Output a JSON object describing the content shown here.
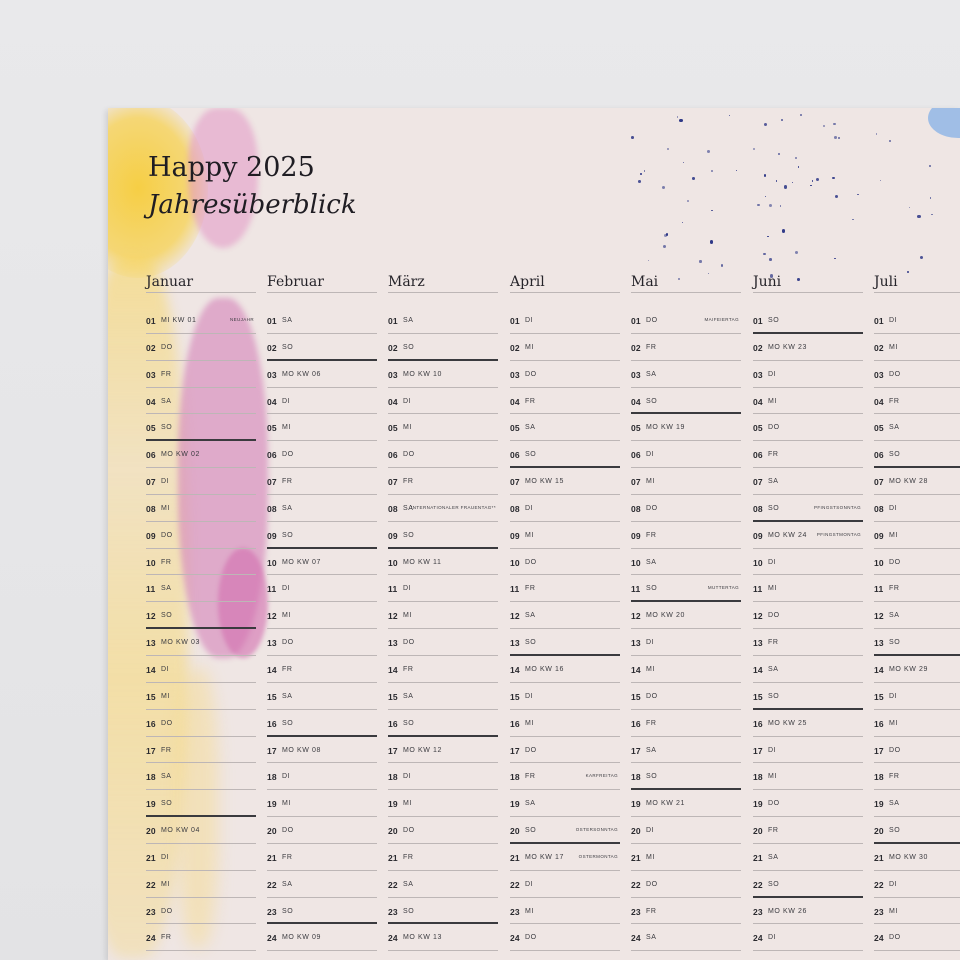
{
  "title": "Happy 2025",
  "subtitle": "Jahresüberblick",
  "colors": {
    "paper": "#efe6e4",
    "ink": "#1f1d23",
    "rule": "#bdb6b6",
    "yellow": "#f6cd3c",
    "pink": "#d278b4",
    "blue": "#8cb4e6",
    "speckle": "#2b3585"
  },
  "months": [
    {
      "name": "Januar",
      "days": [
        {
          "n": "01",
          "d": "MI KW 01",
          "note": "NEUJAHR"
        },
        {
          "n": "02",
          "d": "DO"
        },
        {
          "n": "03",
          "d": "FR"
        },
        {
          "n": "04",
          "d": "SA"
        },
        {
          "n": "05",
          "d": "SO",
          "thick": true
        },
        {
          "n": "06",
          "d": "MO KW 02"
        },
        {
          "n": "07",
          "d": "DI"
        },
        {
          "n": "08",
          "d": "MI"
        },
        {
          "n": "09",
          "d": "DO"
        },
        {
          "n": "10",
          "d": "FR"
        },
        {
          "n": "11",
          "d": "SA"
        },
        {
          "n": "12",
          "d": "SO",
          "thick": true
        },
        {
          "n": "13",
          "d": "MO KW 03"
        },
        {
          "n": "14",
          "d": "DI"
        },
        {
          "n": "15",
          "d": "MI"
        },
        {
          "n": "16",
          "d": "DO"
        },
        {
          "n": "17",
          "d": "FR"
        },
        {
          "n": "18",
          "d": "SA"
        },
        {
          "n": "19",
          "d": "SO",
          "thick": true
        },
        {
          "n": "20",
          "d": "MO KW 04"
        },
        {
          "n": "21",
          "d": "DI"
        },
        {
          "n": "22",
          "d": "MI"
        },
        {
          "n": "23",
          "d": "DO"
        },
        {
          "n": "24",
          "d": "FR"
        }
      ]
    },
    {
      "name": "Februar",
      "days": [
        {
          "n": "01",
          "d": "SA"
        },
        {
          "n": "02",
          "d": "SO",
          "thick": true
        },
        {
          "n": "03",
          "d": "MO KW 06"
        },
        {
          "n": "04",
          "d": "DI"
        },
        {
          "n": "05",
          "d": "MI"
        },
        {
          "n": "06",
          "d": "DO"
        },
        {
          "n": "07",
          "d": "FR"
        },
        {
          "n": "08",
          "d": "SA"
        },
        {
          "n": "09",
          "d": "SO",
          "thick": true
        },
        {
          "n": "10",
          "d": "MO KW 07"
        },
        {
          "n": "11",
          "d": "DI"
        },
        {
          "n": "12",
          "d": "MI"
        },
        {
          "n": "13",
          "d": "DO"
        },
        {
          "n": "14",
          "d": "FR"
        },
        {
          "n": "15",
          "d": "SA"
        },
        {
          "n": "16",
          "d": "SO",
          "thick": true
        },
        {
          "n": "17",
          "d": "MO KW 08"
        },
        {
          "n": "18",
          "d": "DI"
        },
        {
          "n": "19",
          "d": "MI"
        },
        {
          "n": "20",
          "d": "DO"
        },
        {
          "n": "21",
          "d": "FR"
        },
        {
          "n": "22",
          "d": "SA"
        },
        {
          "n": "23",
          "d": "SO",
          "thick": true
        },
        {
          "n": "24",
          "d": "MO KW 09"
        }
      ]
    },
    {
      "name": "März",
      "days": [
        {
          "n": "01",
          "d": "SA"
        },
        {
          "n": "02",
          "d": "SO",
          "thick": true
        },
        {
          "n": "03",
          "d": "MO KW 10"
        },
        {
          "n": "04",
          "d": "DI"
        },
        {
          "n": "05",
          "d": "MI"
        },
        {
          "n": "06",
          "d": "DO"
        },
        {
          "n": "07",
          "d": "FR"
        },
        {
          "n": "08",
          "d": "SA",
          "note": "INTERNATIONALER FRAUENTAG**"
        },
        {
          "n": "09",
          "d": "SO",
          "thick": true
        },
        {
          "n": "10",
          "d": "MO KW 11"
        },
        {
          "n": "11",
          "d": "DI"
        },
        {
          "n": "12",
          "d": "MI"
        },
        {
          "n": "13",
          "d": "DO"
        },
        {
          "n": "14",
          "d": "FR"
        },
        {
          "n": "15",
          "d": "SA"
        },
        {
          "n": "16",
          "d": "SO",
          "thick": true
        },
        {
          "n": "17",
          "d": "MO KW 12"
        },
        {
          "n": "18",
          "d": "DI"
        },
        {
          "n": "19",
          "d": "MI"
        },
        {
          "n": "20",
          "d": "DO"
        },
        {
          "n": "21",
          "d": "FR"
        },
        {
          "n": "22",
          "d": "SA"
        },
        {
          "n": "23",
          "d": "SO",
          "thick": true
        },
        {
          "n": "24",
          "d": "MO KW 13"
        }
      ]
    },
    {
      "name": "April",
      "days": [
        {
          "n": "01",
          "d": "DI"
        },
        {
          "n": "02",
          "d": "MI"
        },
        {
          "n": "03",
          "d": "DO"
        },
        {
          "n": "04",
          "d": "FR"
        },
        {
          "n": "05",
          "d": "SA"
        },
        {
          "n": "06",
          "d": "SO",
          "thick": true
        },
        {
          "n": "07",
          "d": "MO KW 15"
        },
        {
          "n": "08",
          "d": "DI"
        },
        {
          "n": "09",
          "d": "MI"
        },
        {
          "n": "10",
          "d": "DO"
        },
        {
          "n": "11",
          "d": "FR"
        },
        {
          "n": "12",
          "d": "SA"
        },
        {
          "n": "13",
          "d": "SO",
          "thick": true
        },
        {
          "n": "14",
          "d": "MO KW 16"
        },
        {
          "n": "15",
          "d": "DI"
        },
        {
          "n": "16",
          "d": "MI"
        },
        {
          "n": "17",
          "d": "DO"
        },
        {
          "n": "18",
          "d": "FR",
          "note": "KARFREITAG"
        },
        {
          "n": "19",
          "d": "SA"
        },
        {
          "n": "20",
          "d": "SO",
          "note": "OSTERSONNTAG",
          "thick": true
        },
        {
          "n": "21",
          "d": "MO KW 17",
          "note": "OSTERMONTAG"
        },
        {
          "n": "22",
          "d": "DI"
        },
        {
          "n": "23",
          "d": "MI"
        },
        {
          "n": "24",
          "d": "DO"
        }
      ]
    },
    {
      "name": "Mai",
      "days": [
        {
          "n": "01",
          "d": "DO",
          "note": "MAIFEIERTAG"
        },
        {
          "n": "02",
          "d": "FR"
        },
        {
          "n": "03",
          "d": "SA"
        },
        {
          "n": "04",
          "d": "SO",
          "thick": true
        },
        {
          "n": "05",
          "d": "MO KW 19"
        },
        {
          "n": "06",
          "d": "DI"
        },
        {
          "n": "07",
          "d": "MI"
        },
        {
          "n": "08",
          "d": "DO"
        },
        {
          "n": "09",
          "d": "FR"
        },
        {
          "n": "10",
          "d": "SA"
        },
        {
          "n": "11",
          "d": "SO",
          "note": "MUTTERTAG",
          "thick": true
        },
        {
          "n": "12",
          "d": "MO KW 20"
        },
        {
          "n": "13",
          "d": "DI"
        },
        {
          "n": "14",
          "d": "MI"
        },
        {
          "n": "15",
          "d": "DO"
        },
        {
          "n": "16",
          "d": "FR"
        },
        {
          "n": "17",
          "d": "SA"
        },
        {
          "n": "18",
          "d": "SO",
          "thick": true
        },
        {
          "n": "19",
          "d": "MO KW 21"
        },
        {
          "n": "20",
          "d": "DI"
        },
        {
          "n": "21",
          "d": "MI"
        },
        {
          "n": "22",
          "d": "DO"
        },
        {
          "n": "23",
          "d": "FR"
        },
        {
          "n": "24",
          "d": "SA"
        }
      ]
    },
    {
      "name": "Juni",
      "days": [
        {
          "n": "01",
          "d": "SO",
          "thick": true
        },
        {
          "n": "02",
          "d": "MO KW 23"
        },
        {
          "n": "03",
          "d": "DI"
        },
        {
          "n": "04",
          "d": "MI"
        },
        {
          "n": "05",
          "d": "DO"
        },
        {
          "n": "06",
          "d": "FR"
        },
        {
          "n": "07",
          "d": "SA"
        },
        {
          "n": "08",
          "d": "SO",
          "note": "PFINGSTSONNTAG",
          "thick": true
        },
        {
          "n": "09",
          "d": "MO KW 24",
          "note": "PFINGSTMONTAG"
        },
        {
          "n": "10",
          "d": "DI"
        },
        {
          "n": "11",
          "d": "MI"
        },
        {
          "n": "12",
          "d": "DO"
        },
        {
          "n": "13",
          "d": "FR"
        },
        {
          "n": "14",
          "d": "SA"
        },
        {
          "n": "15",
          "d": "SO",
          "thick": true
        },
        {
          "n": "16",
          "d": "MO KW 25"
        },
        {
          "n": "17",
          "d": "DI"
        },
        {
          "n": "18",
          "d": "MI"
        },
        {
          "n": "19",
          "d": "DO"
        },
        {
          "n": "20",
          "d": "FR"
        },
        {
          "n": "21",
          "d": "SA"
        },
        {
          "n": "22",
          "d": "SO",
          "thick": true
        },
        {
          "n": "23",
          "d": "MO KW 26"
        },
        {
          "n": "24",
          "d": "DI"
        }
      ]
    },
    {
      "name": "Juli",
      "days": [
        {
          "n": "01",
          "d": "DI"
        },
        {
          "n": "02",
          "d": "MI"
        },
        {
          "n": "03",
          "d": "DO"
        },
        {
          "n": "04",
          "d": "FR"
        },
        {
          "n": "05",
          "d": "SA"
        },
        {
          "n": "06",
          "d": "SO",
          "thick": true
        },
        {
          "n": "07",
          "d": "MO KW 28"
        },
        {
          "n": "08",
          "d": "DI"
        },
        {
          "n": "09",
          "d": "MI"
        },
        {
          "n": "10",
          "d": "DO"
        },
        {
          "n": "11",
          "d": "FR"
        },
        {
          "n": "12",
          "d": "SA"
        },
        {
          "n": "13",
          "d": "SO",
          "thick": true
        },
        {
          "n": "14",
          "d": "MO KW 29"
        },
        {
          "n": "15",
          "d": "DI"
        },
        {
          "n": "16",
          "d": "MI"
        },
        {
          "n": "17",
          "d": "DO"
        },
        {
          "n": "18",
          "d": "FR"
        },
        {
          "n": "19",
          "d": "SA"
        },
        {
          "n": "20",
          "d": "SO",
          "thick": true
        },
        {
          "n": "21",
          "d": "MO KW 30"
        },
        {
          "n": "22",
          "d": "DI"
        },
        {
          "n": "23",
          "d": "MI"
        },
        {
          "n": "24",
          "d": "DO"
        }
      ]
    }
  ]
}
